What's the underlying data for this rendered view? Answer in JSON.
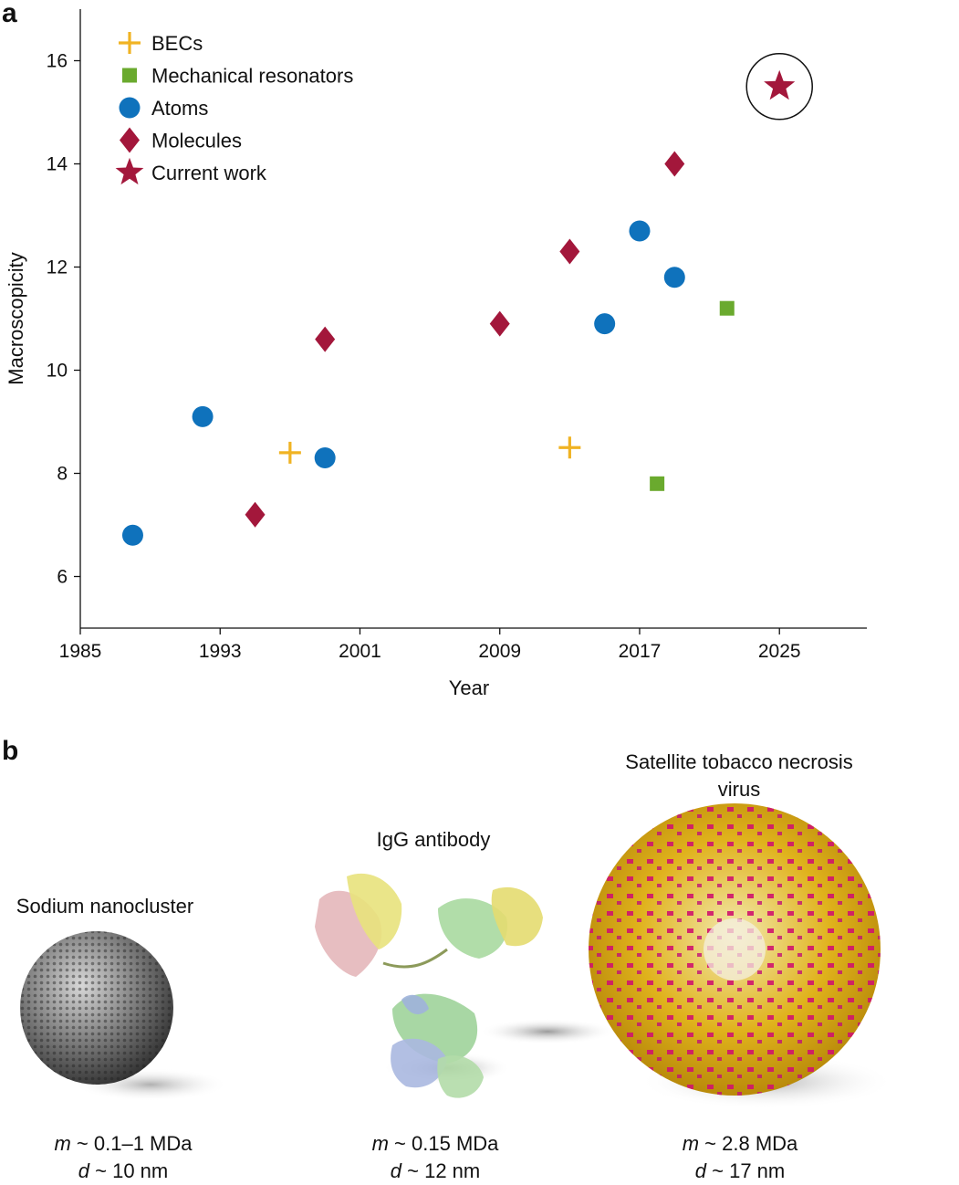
{
  "panel_a_label": "a",
  "panel_b_label": "b",
  "chart_data": {
    "type": "scatter",
    "xlabel": "Year",
    "ylabel": "Macroscopicity",
    "xlim": [
      1985,
      2030
    ],
    "ylim": [
      5,
      17
    ],
    "xticks": [
      1985,
      1993,
      2001,
      2009,
      2017,
      2025
    ],
    "yticks": [
      6,
      8,
      10,
      12,
      14,
      16
    ],
    "legend_position": "top-left",
    "series": [
      {
        "name": "BECs",
        "marker": "plus",
        "color": "#f0b323",
        "points": [
          [
            1997,
            8.4
          ],
          [
            2013,
            8.5
          ]
        ]
      },
      {
        "name": "Mechanical resonators",
        "marker": "square",
        "color": "#6aaa2e",
        "points": [
          [
            2018,
            7.8
          ],
          [
            2022,
            11.2
          ]
        ]
      },
      {
        "name": "Atoms",
        "marker": "circle",
        "color": "#0f72bc",
        "points": [
          [
            1988,
            6.8
          ],
          [
            1992,
            9.1
          ],
          [
            1999,
            8.3
          ],
          [
            2015,
            10.9
          ],
          [
            2017,
            12.7
          ],
          [
            2019,
            11.8
          ]
        ]
      },
      {
        "name": "Molecules",
        "marker": "diamond",
        "color": "#a3173b",
        "points": [
          [
            1995,
            7.2
          ],
          [
            1999,
            10.6
          ],
          [
            2009,
            10.9
          ],
          [
            2013,
            12.3
          ],
          [
            2019,
            14.0
          ]
        ]
      },
      {
        "name": "Current work",
        "marker": "star",
        "color": "#a3173b",
        "circled": true,
        "points": [
          [
            2025,
            15.5
          ]
        ]
      }
    ]
  },
  "panel_b": {
    "structures": [
      {
        "title": "Sodium nanocluster",
        "mass_symbol": "m",
        "mass": " ~ 0.1–1 MDa",
        "diameter_symbol": "d",
        "diameter": " ~ 10 nm"
      },
      {
        "title": "IgG antibody",
        "mass_symbol": "m",
        "mass": " ~ 0.15 MDa",
        "diameter_symbol": "d",
        "diameter": " ~ 12 nm"
      },
      {
        "title_line1": "Satellite tobacco necrosis",
        "title_line2": "virus",
        "mass_symbol": "m",
        "mass": " ~ 2.8 MDa",
        "diameter_symbol": "d",
        "diameter": " ~ 17 nm"
      }
    ]
  }
}
